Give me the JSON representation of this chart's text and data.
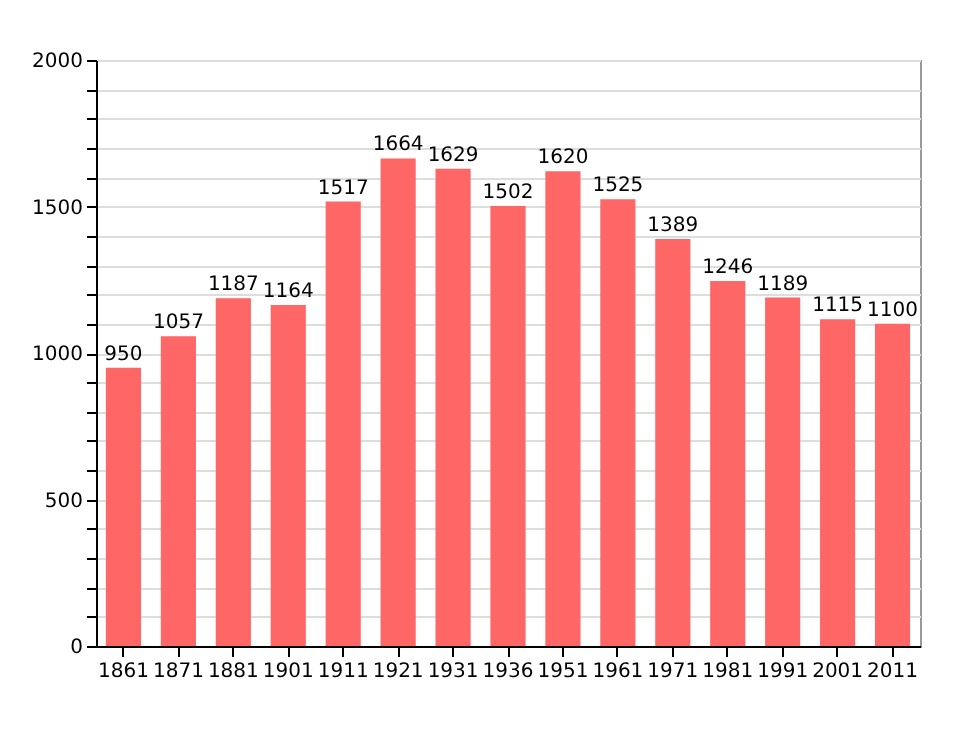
{
  "chart_data": {
    "type": "bar",
    "categories": [
      "1861",
      "1871",
      "1881",
      "1901",
      "1911",
      "1921",
      "1931",
      "1936",
      "1951",
      "1961",
      "1971",
      "1981",
      "1991",
      "2001",
      "2011"
    ],
    "values": [
      950,
      1057,
      1187,
      1164,
      1517,
      1664,
      1629,
      1502,
      1620,
      1525,
      1389,
      1246,
      1189,
      1115,
      1100
    ],
    "color": "#ff6666",
    "ylim": [
      0,
      2000
    ],
    "yticks": [
      0,
      {
        "value": 100,
        "label": null
      },
      {
        "value": 200,
        "label": null
      },
      {
        "value": 300,
        "label": null
      },
      {
        "value": 400,
        "label": null
      },
      500,
      {
        "value": 600,
        "label": null
      },
      {
        "value": 700,
        "label": null
      },
      {
        "value": 800,
        "label": null
      },
      {
        "value": 900,
        "label": null
      },
      1000,
      {
        "value": 1100,
        "label": null
      },
      {
        "value": 1200,
        "label": null
      },
      {
        "value": 1300,
        "label": null
      },
      {
        "value": 1400,
        "label": null
      },
      1500,
      {
        "value": 1600,
        "label": null
      },
      {
        "value": 1700,
        "label": null
      },
      {
        "value": 1800,
        "label": null
      },
      {
        "value": 1900,
        "label": null
      },
      2000
    ],
    "grid": "y",
    "data_labels": true
  }
}
